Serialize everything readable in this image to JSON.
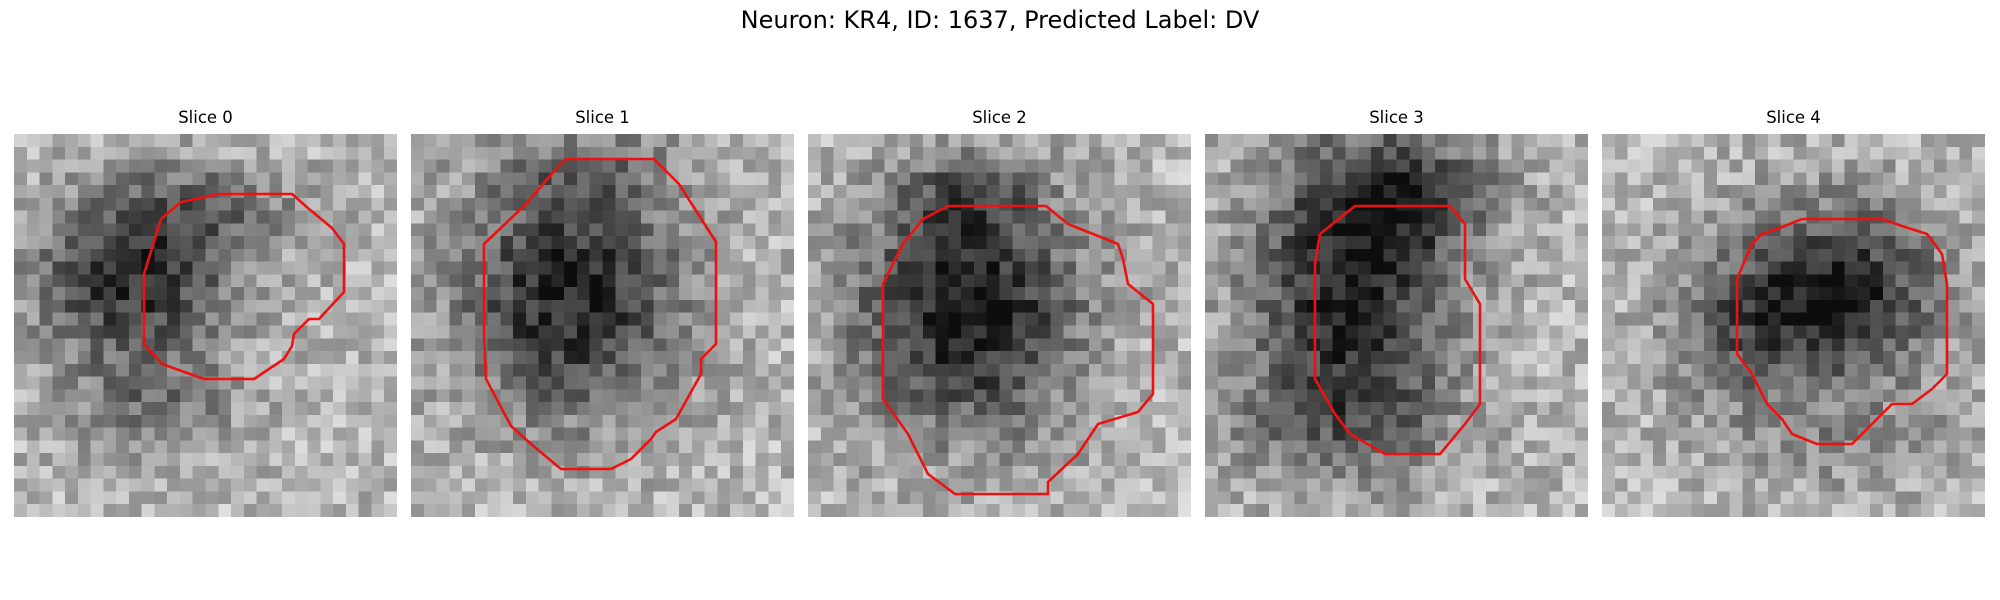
{
  "figure": {
    "title": "Neuron: KR4, ID: 1637, Predicted Label: DV"
  },
  "colors": {
    "contour": "#ee1111",
    "background": "#ffffff"
  },
  "panels": [
    {
      "title": "Slice 0",
      "image": "grayscale-microscopy-slice",
      "contour": "red-roi-outline"
    },
    {
      "title": "Slice 1",
      "image": "grayscale-microscopy-slice",
      "contour": "red-roi-outline"
    },
    {
      "title": "Slice 2",
      "image": "grayscale-microscopy-slice",
      "contour": "red-roi-outline"
    },
    {
      "title": "Slice 3",
      "image": "grayscale-microscopy-slice",
      "contour": "red-roi-outline"
    },
    {
      "title": "Slice 4",
      "image": "grayscale-microscopy-slice",
      "contour": "red-roi-outline"
    }
  ]
}
